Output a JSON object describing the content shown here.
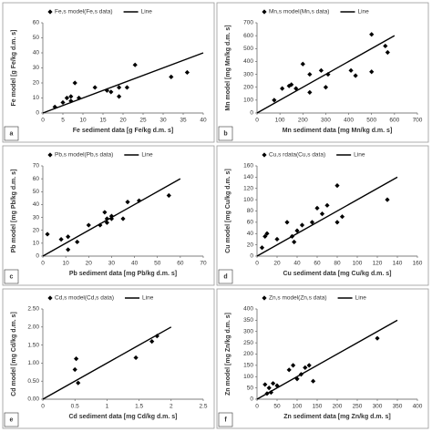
{
  "chart_data": [
    {
      "type": "scatter",
      "label": "a",
      "xlabel": "Fe sediment data [g Fe/kg d.m. s]",
      "ylabel": "Fe model [g Fe/kg d.m. s]",
      "xlim": [
        0,
        40
      ],
      "xticks": [
        0,
        5,
        10,
        15,
        20,
        25,
        30,
        35,
        40
      ],
      "ylim": [
        0,
        60
      ],
      "yticks": [
        0,
        10,
        20,
        30,
        40,
        50,
        60
      ],
      "series": [
        {
          "name": "Fe,s model(Fe,s data)",
          "color": "#000000",
          "x": [
            3,
            5,
            6,
            7,
            7,
            8,
            9,
            13,
            16,
            17,
            19,
            19,
            21,
            23,
            32,
            36
          ],
          "values": [
            4,
            7,
            10,
            8,
            11,
            20,
            10,
            17,
            15,
            14,
            11,
            17,
            17,
            32,
            24,
            27
          ]
        },
        {
          "name": "Line",
          "color": "#000000",
          "x": [
            0,
            40
          ],
          "values": [
            0,
            40
          ]
        }
      ]
    },
    {
      "type": "scatter",
      "label": "b",
      "xlabel": "Mn sediment data [mg Mn/kg d.m. s]",
      "ylabel": "Mn model [mg Mn/kg d.m. s]",
      "xlim": [
        0,
        700
      ],
      "xticks": [
        0,
        100,
        200,
        300,
        400,
        500,
        600,
        700
      ],
      "ylim": [
        0,
        700
      ],
      "yticks": [
        0,
        100,
        200,
        300,
        400,
        500,
        600,
        700
      ],
      "series": [
        {
          "name": "Mn,s model(Mn,s data)",
          "color": "#000000",
          "x": [
            75,
            110,
            140,
            150,
            170,
            200,
            230,
            230,
            280,
            300,
            310,
            410,
            430,
            500,
            500,
            560,
            570
          ],
          "values": [
            100,
            190,
            210,
            220,
            190,
            380,
            160,
            300,
            330,
            200,
            300,
            330,
            290,
            610,
            320,
            520,
            470
          ]
        },
        {
          "name": "Line",
          "color": "#000000",
          "x": [
            0,
            600
          ],
          "values": [
            0,
            600
          ]
        }
      ]
    },
    {
      "type": "scatter",
      "label": "c",
      "xlabel": "Pb sediment data [mg Pb/kg d.m. s]",
      "ylabel": "Pb model [mg Pb/kg d.m. s]",
      "xlim": [
        0,
        70
      ],
      "xticks": [
        0,
        10,
        20,
        30,
        40,
        50,
        60,
        70
      ],
      "ylim": [
        0,
        70
      ],
      "yticks": [
        0,
        10,
        20,
        30,
        40,
        50,
        60,
        70
      ],
      "series": [
        {
          "name": "Pb,s model(Pb,s data)",
          "color": "#000000",
          "x": [
            2,
            8,
            11,
            11,
            15,
            20,
            25,
            27,
            28,
            28,
            30,
            30,
            35,
            37,
            42,
            55
          ],
          "values": [
            17,
            13,
            15,
            5,
            11,
            24,
            24,
            34,
            29,
            26,
            29,
            31,
            29,
            42,
            43,
            47
          ]
        },
        {
          "name": "Line",
          "color": "#000000",
          "x": [
            0,
            60
          ],
          "values": [
            0,
            60
          ]
        }
      ]
    },
    {
      "type": "scatter",
      "label": "d",
      "xlabel": "Cu sediment data [mg Cu/kg d.m. s]",
      "ylabel": "Cu model [mg Cu/kg d.m. s]",
      "xlim": [
        0,
        160
      ],
      "xticks": [
        0,
        20,
        40,
        60,
        80,
        100,
        120,
        140,
        160
      ],
      "ylim": [
        0,
        160
      ],
      "yticks": [
        0,
        20,
        40,
        60,
        80,
        100,
        120,
        140,
        160
      ],
      "series": [
        {
          "name": "Cu,s rdata(Cu,s data)",
          "color": "#000000",
          "x": [
            5,
            8,
            10,
            20,
            30,
            35,
            37,
            40,
            45,
            55,
            60,
            65,
            70,
            80,
            80,
            85,
            130
          ],
          "values": [
            15,
            35,
            40,
            30,
            60,
            35,
            25,
            45,
            55,
            60,
            85,
            75,
            90,
            125,
            60,
            70,
            100
          ]
        },
        {
          "name": "Line",
          "color": "#000000",
          "x": [
            0,
            140
          ],
          "values": [
            0,
            140
          ]
        }
      ]
    },
    {
      "type": "scatter",
      "label": "e",
      "xlabel": "Cd sediment data [mg Cd/kg d.m. s]",
      "ylabel": "Cd model [mg Cd/kg d.m. s]",
      "xlim": [
        0,
        2.5
      ],
      "xticks": [
        0,
        0.5,
        1,
        1.5,
        2,
        2.5
      ],
      "ylim": [
        0,
        2.5
      ],
      "yticks": [
        {
          "value": 0,
          "label": "0.00"
        },
        {
          "value": 0.5,
          "label": "0.50"
        },
        {
          "value": 1,
          "label": "1.00"
        },
        {
          "value": 1.5,
          "label": "1.50"
        },
        {
          "value": 2,
          "label": "2.00"
        },
        {
          "value": 2.5,
          "label": "2.50"
        }
      ],
      "series": [
        {
          "name": "Cd,s model(Cd,s data)",
          "color": "#000000",
          "x": [
            0.5,
            0.52,
            0.55,
            1.45,
            1.7,
            1.78
          ],
          "values": [
            0.82,
            1.12,
            0.45,
            1.15,
            1.6,
            1.75
          ]
        },
        {
          "name": "Line",
          "color": "#000000",
          "x": [
            0,
            2
          ],
          "values": [
            0,
            2
          ]
        }
      ]
    },
    {
      "type": "scatter",
      "label": "f",
      "xlabel": "Zn sediment data [mg Zn/kg d.m. s]",
      "ylabel": "Zn model [mg Zn/kg d.m. s]",
      "xlim": [
        0,
        400
      ],
      "xticks": [
        0,
        50,
        100,
        150,
        200,
        250,
        300,
        350,
        400
      ],
      "ylim": [
        0,
        400
      ],
      "yticks": [
        0,
        50,
        100,
        150,
        200,
        250,
        300,
        350,
        400
      ],
      "series": [
        {
          "name": "Zn,s model(Zn,s data)",
          "color": "#000000",
          "x": [
            20,
            25,
            30,
            35,
            40,
            50,
            80,
            90,
            100,
            110,
            120,
            130,
            140,
            300
          ],
          "values": [
            65,
            25,
            50,
            30,
            70,
            60,
            130,
            150,
            90,
            110,
            140,
            150,
            80,
            270
          ]
        },
        {
          "name": "Line",
          "color": "#000000",
          "x": [
            0,
            350
          ],
          "values": [
            0,
            350
          ]
        }
      ]
    }
  ]
}
